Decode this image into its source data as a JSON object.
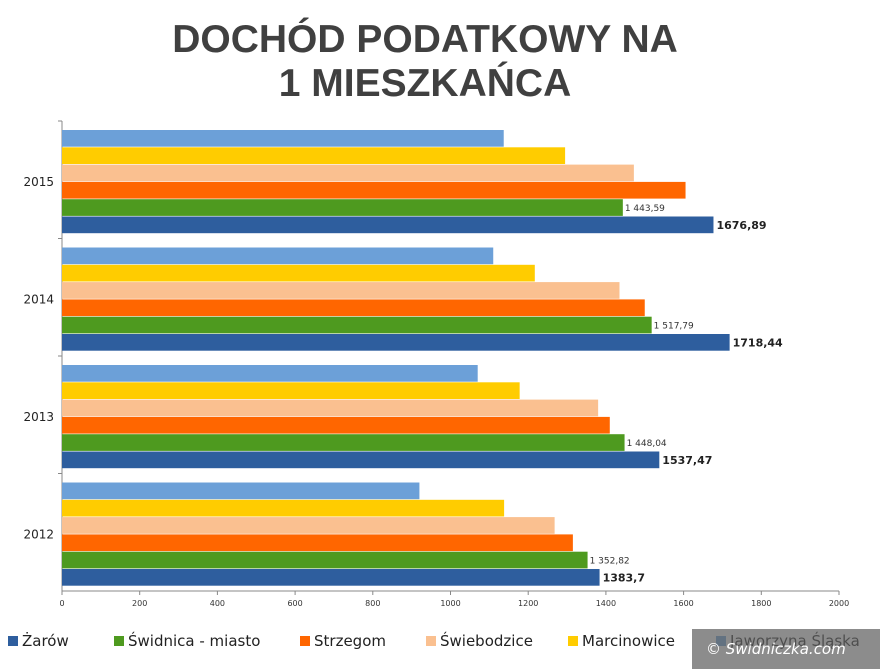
{
  "chart_data": {
    "type": "bar",
    "orientation": "horizontal",
    "title_lines": [
      "DOCHÓD PODATKOWY NA",
      "1 MIESZKAŃCA"
    ],
    "categories": [
      "2015",
      "2014",
      "2013",
      "2012"
    ],
    "series_order_top_to_bottom": [
      "Jaworzyna Śląska",
      "Marcinowice",
      "Świebodzice",
      "Strzegom",
      "Świdnica - miasto",
      "Żarów"
    ],
    "series": [
      {
        "name": "Żarów",
        "color": "#2E5E9E",
        "values": [
          1676.89,
          1718.44,
          1537.47,
          1383.7
        ],
        "labels": [
          "1676,89",
          "1718,44",
          "1537,47",
          "1383,7"
        ]
      },
      {
        "name": "Świdnica - miasto",
        "color": "#4E9A1F",
        "values": [
          1443.59,
          1517.79,
          1448.04,
          1352.82
        ],
        "labels": [
          "1 443,59",
          "1 517,79",
          "1 448,04",
          "1 352,82"
        ]
      },
      {
        "name": "Strzegom",
        "color": "#FF6600",
        "values": [
          1605,
          1500,
          1410,
          1315
        ],
        "labels": []
      },
      {
        "name": "Świebodzice",
        "color": "#FAC090",
        "values": [
          1472,
          1435,
          1380,
          1268
        ],
        "labels": []
      },
      {
        "name": "Marcinowice",
        "color": "#FFCC00",
        "values": [
          1295,
          1217,
          1178,
          1138
        ],
        "labels": []
      },
      {
        "name": "Jaworzyna Śląska",
        "color": "#6CA0D8",
        "values": [
          1137,
          1110,
          1070,
          920
        ],
        "labels": []
      }
    ],
    "xlim": [
      0,
      2000
    ],
    "xticks": [
      0,
      200,
      400,
      600,
      800,
      1000,
      1200,
      1400,
      1600,
      1800,
      2000
    ],
    "grid": false,
    "legend_position": "bottom"
  },
  "watermark": "© Swidniczka.com"
}
